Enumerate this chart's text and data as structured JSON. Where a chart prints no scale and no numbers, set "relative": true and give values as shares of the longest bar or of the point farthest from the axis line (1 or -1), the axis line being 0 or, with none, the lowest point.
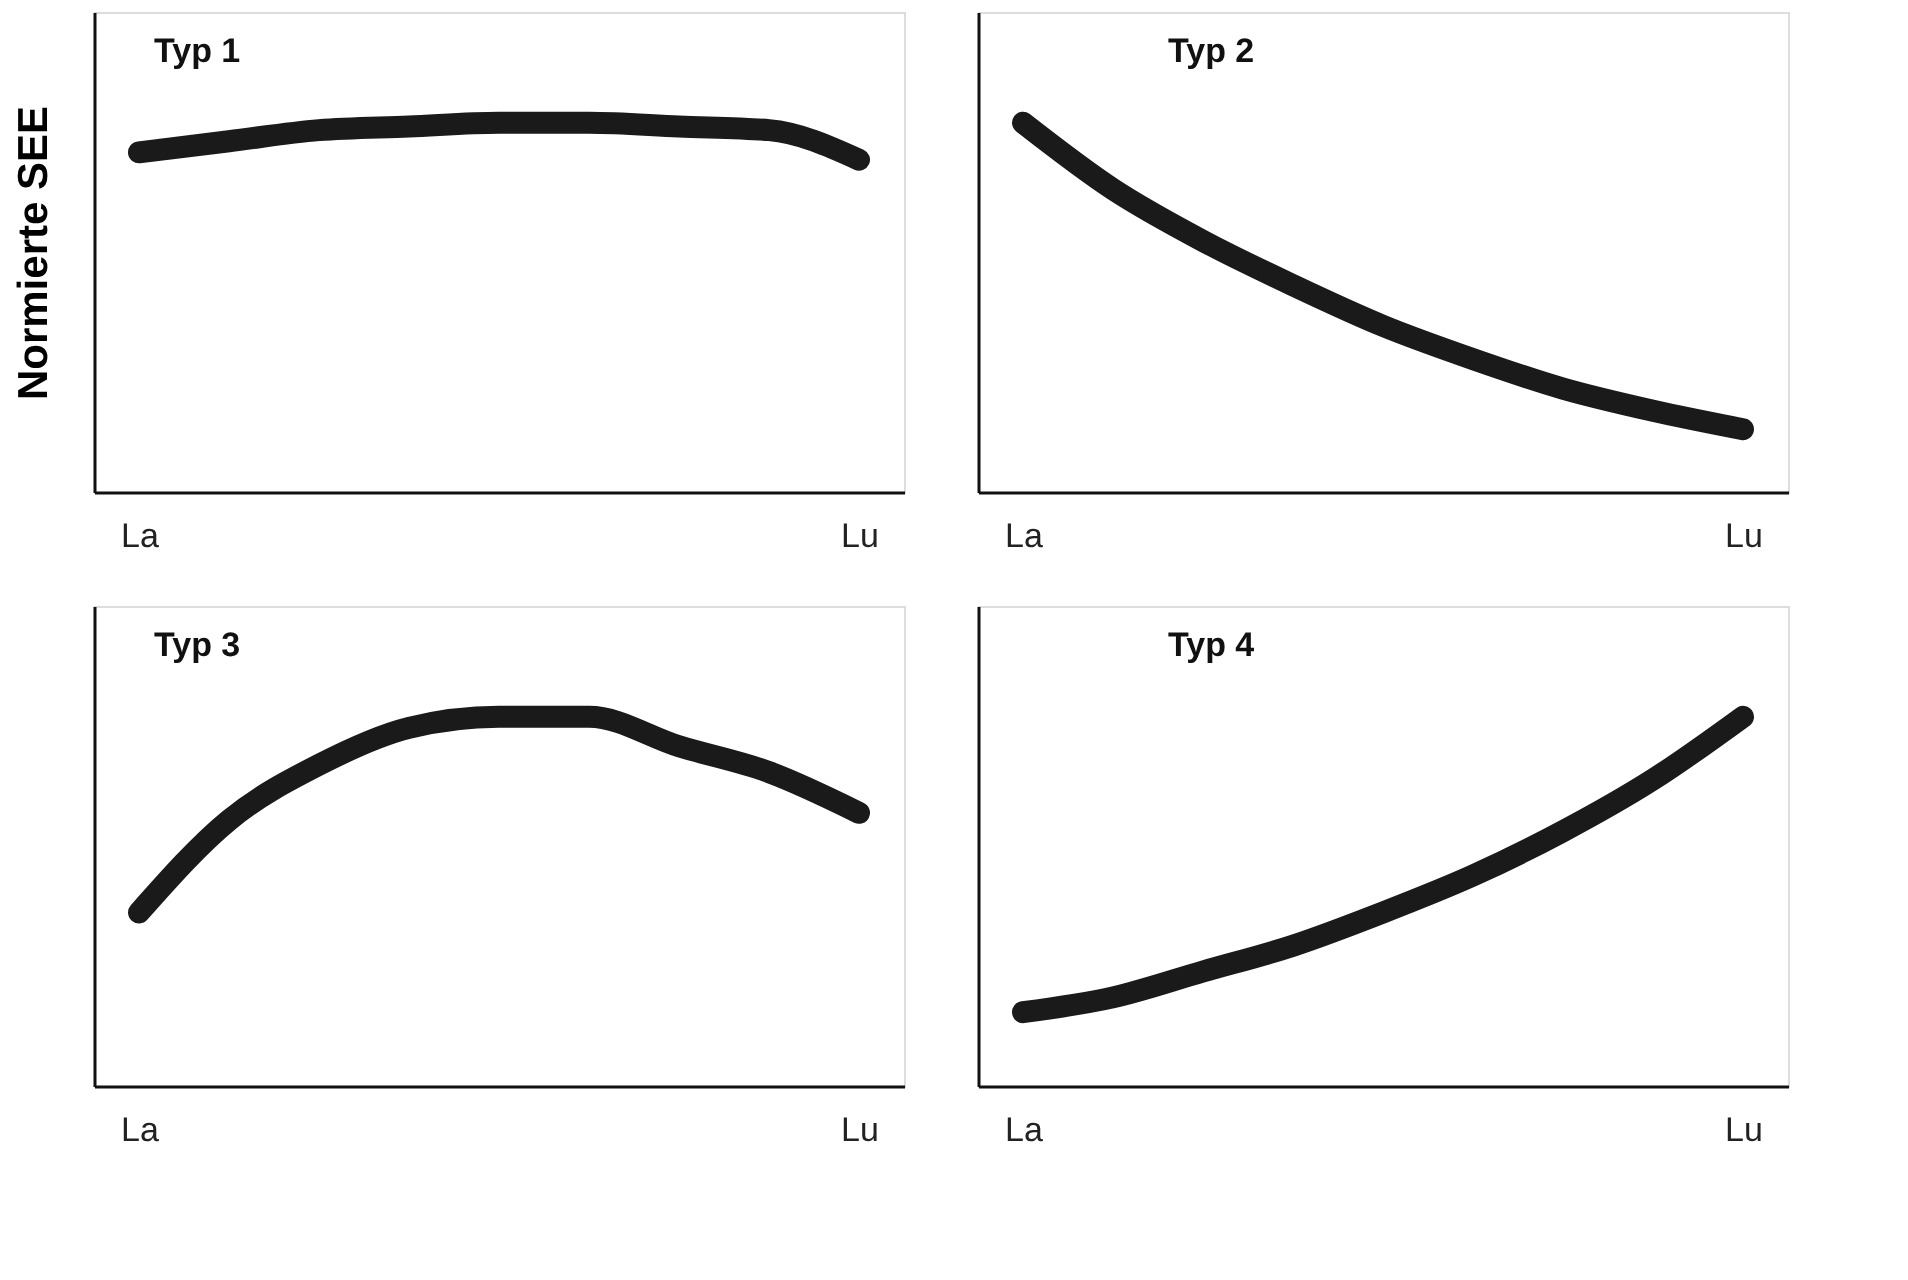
{
  "chart_data": [
    {
      "type": "line",
      "title": "Typ 1",
      "ylabel": "Normierte SEE",
      "relative": true,
      "tick_labels": "x",
      "grid": false,
      "legend": false,
      "line_style": "solid",
      "categories": [
        "La",
        null,
        null,
        null,
        null,
        null,
        null,
        null,
        "Lu"
      ],
      "series": [
        {
          "color": "#1a1a1a",
          "values": [
            0.92,
            0.95,
            0.98,
            0.99,
            1,
            1,
            0.99,
            0.98,
            0.9
          ]
        }
      ]
    },
    {
      "type": "line",
      "title": "Typ 2",
      "relative": true,
      "tick_labels": "x",
      "grid": false,
      "legend": false,
      "line_style": "solid",
      "categories": [
        "La",
        null,
        null,
        null,
        null,
        null,
        null,
        null,
        "Lu"
      ],
      "series": [
        {
          "color": "#1a1a1a",
          "values": [
            1,
            0.82,
            0.68,
            0.56,
            0.45,
            0.36,
            0.28,
            0.22,
            0.17
          ]
        }
      ]
    },
    {
      "type": "line",
      "title": "Typ 3",
      "relative": true,
      "tick_labels": "x",
      "grid": false,
      "legend": false,
      "line_style": "solid",
      "categories": [
        "La",
        null,
        null,
        null,
        null,
        null,
        null,
        null,
        "Lu"
      ],
      "series": [
        {
          "color": "#1a1a1a",
          "values": [
            0.47,
            0.72,
            0.87,
            0.97,
            1,
            1,
            0.92,
            0.85,
            0.74
          ]
        }
      ]
    },
    {
      "type": "line",
      "title": "Typ 4",
      "relative": true,
      "tick_labels": "x",
      "grid": false,
      "legend": false,
      "line_style": "solid",
      "categories": [
        "La",
        null,
        null,
        null,
        null,
        null,
        null,
        null,
        "Lu"
      ],
      "series": [
        {
          "color": "#1a1a1a",
          "values": [
            0.2,
            0.24,
            0.31,
            0.38,
            0.47,
            0.57,
            0.69,
            0.83,
            1
          ]
        }
      ]
    }
  ]
}
